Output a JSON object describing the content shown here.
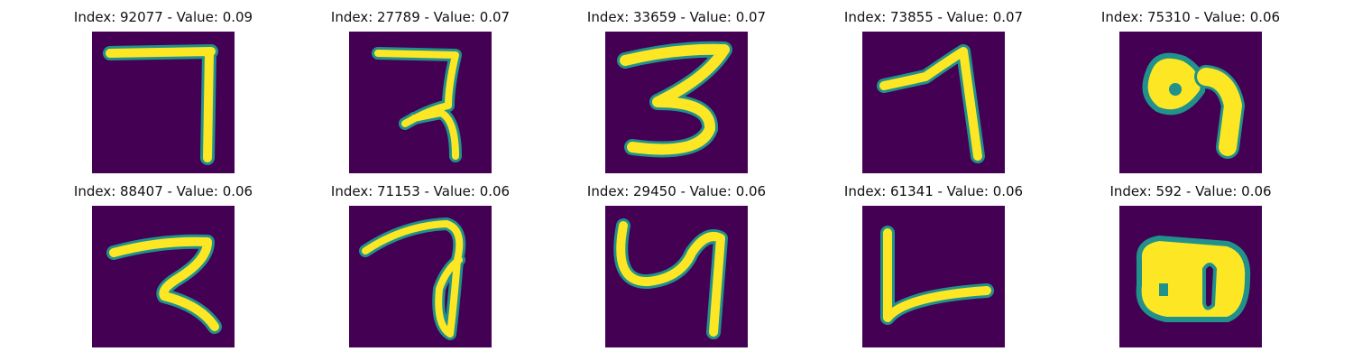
{
  "figure": {
    "colors": {
      "background": "#440154",
      "stroke": "#fde725",
      "edge": "#21918c"
    },
    "panels": [
      {
        "title": "Index: 92077 - Value: 0.09",
        "index": 92077,
        "value": 0.09
      },
      {
        "title": "Index: 27789 - Value: 0.07",
        "index": 27789,
        "value": 0.07
      },
      {
        "title": "Index: 33659 - Value: 0.07",
        "index": 33659,
        "value": 0.07
      },
      {
        "title": "Index: 73855 - Value: 0.07",
        "index": 73855,
        "value": 0.07
      },
      {
        "title": "Index: 75310 - Value: 0.06",
        "index": 75310,
        "value": 0.06
      },
      {
        "title": "Index: 88407 - Value: 0.06",
        "index": 88407,
        "value": 0.06
      },
      {
        "title": "Index: 71153 - Value: 0.06",
        "index": 71153,
        "value": 0.06
      },
      {
        "title": "Index: 29450 - Value: 0.06",
        "index": 29450,
        "value": 0.06
      },
      {
        "title": "Index: 61341 - Value: 0.06",
        "index": 61341,
        "value": 0.06
      },
      {
        "title": "Index: 592 - Value: 0.06",
        "index": 592,
        "value": 0.06
      }
    ]
  }
}
